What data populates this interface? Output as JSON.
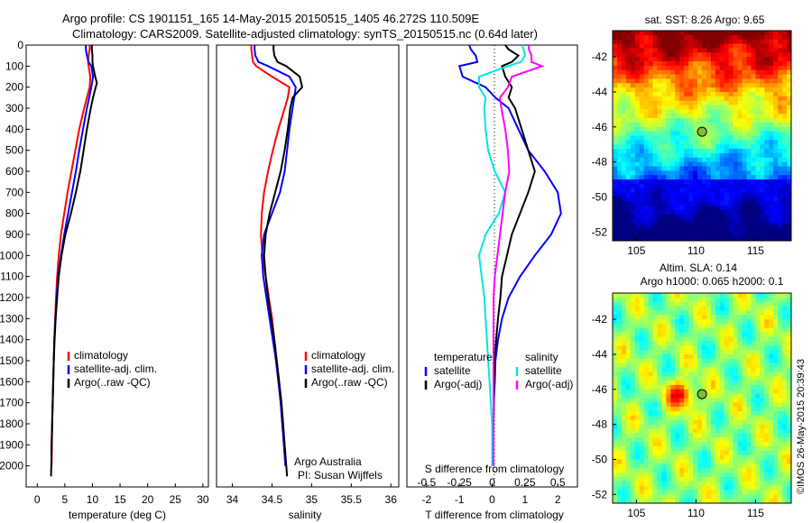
{
  "header": {
    "title_line1": "Argo profile: CS 1901151_165 14-May-2015 20150515_1405 46.272S 110.509E",
    "title_line2": "Climatology: CARS2009. Satellite-adjusted climatology: synTS_20150515.nc (0.64d later)"
  },
  "credit": {
    "line1": "Argo Australia",
    "line2": "PI: Susan Wijffels",
    "imos": "©IMOS 26-May-2015 20:39:43"
  },
  "colors": {
    "climatology": "#ff0000",
    "satellite": "#0000ff",
    "argo": "#000000",
    "salinity_satellite": "#00e5e5",
    "salinity_argo": "#ff00ff"
  },
  "chart_data": [
    {
      "type": "line",
      "xlabel": "temperature (deg C)",
      "ylabel": "",
      "xlim": [
        -2,
        31
      ],
      "ylim": [
        2100,
        0
      ],
      "y_reversed": true,
      "xticks": [
        0,
        5,
        10,
        15,
        20,
        25,
        30
      ],
      "yticks": [
        0,
        100,
        200,
        300,
        400,
        500,
        600,
        700,
        800,
        900,
        1000,
        1100,
        1200,
        1300,
        1400,
        1500,
        1600,
        1700,
        1800,
        1900,
        2000
      ],
      "legend": {
        "placement": "bottom-center",
        "entries": [
          "climatology",
          "satellite-adj. clim.",
          "Argo(..raw -QC)"
        ]
      },
      "series": [
        {
          "name": "climatology",
          "color": "#ff0000",
          "y": [
            0,
            20,
            50,
            80,
            100,
            150,
            200,
            250,
            300,
            400,
            500,
            600,
            700,
            800,
            900,
            1000,
            1100,
            1200,
            1300,
            1400,
            1500,
            1600,
            1700,
            1800,
            1900,
            2000
          ],
          "x": [
            9.5,
            9.5,
            9.3,
            9.2,
            9.3,
            9.6,
            9.5,
            9.0,
            8.5,
            7.6,
            6.9,
            6.2,
            5.5,
            4.9,
            4.3,
            3.9,
            3.6,
            3.4,
            3.25,
            3.1,
            3.0,
            2.9,
            2.8,
            2.7,
            2.65,
            2.6
          ]
        },
        {
          "name": "satellite-adj. clim.",
          "color": "#0000ff",
          "y": [
            0,
            20,
            50,
            80,
            100,
            150,
            200,
            250,
            300,
            400,
            500,
            600,
            700,
            800,
            900,
            1000,
            1100,
            1200,
            1300,
            1400,
            1500,
            1600,
            1700,
            1800,
            1900,
            2000
          ],
          "x": [
            8.8,
            8.8,
            9.0,
            9.3,
            9.8,
            10.1,
            9.8,
            9.4,
            9.0,
            8.3,
            7.6,
            7.0,
            6.3,
            5.6,
            4.9,
            4.3,
            3.8,
            3.5,
            3.3,
            3.1,
            3.0,
            2.9,
            2.8,
            2.7,
            2.6,
            2.55
          ]
        },
        {
          "name": "Argo(..raw -QC)",
          "color": "#000000",
          "y": [
            0,
            20,
            50,
            80,
            100,
            150,
            180,
            200,
            250,
            300,
            400,
            500,
            600,
            700,
            800,
            900,
            1000,
            1100,
            1200,
            1300,
            1400,
            1500,
            1600,
            1700,
            1800,
            1900,
            2000,
            2050
          ],
          "x": [
            9.9,
            9.9,
            10.0,
            10.0,
            10.1,
            10.5,
            10.8,
            10.6,
            10.1,
            9.7,
            9.0,
            8.4,
            7.8,
            7.0,
            6.1,
            5.1,
            4.4,
            3.9,
            3.6,
            3.35,
            3.15,
            3.0,
            2.9,
            2.8,
            2.7,
            2.6,
            2.55,
            2.5
          ]
        }
      ]
    },
    {
      "type": "line",
      "xlabel": "salinity",
      "ylabel": "",
      "xlim": [
        33.8,
        36.1
      ],
      "ylim": [
        2100,
        0
      ],
      "y_reversed": true,
      "xticks": [
        34,
        34.5,
        35,
        35.5,
        36
      ],
      "legend": {
        "placement": "bottom-center",
        "entries": [
          "climatology",
          "satellite-adj. clim.",
          "Argo(..raw -QC)"
        ]
      },
      "series": [
        {
          "name": "climatology",
          "color": "#ff0000",
          "y": [
            0,
            20,
            50,
            80,
            100,
            150,
            200,
            250,
            300,
            400,
            500,
            600,
            700,
            800,
            900,
            1000,
            1100,
            1200,
            1300,
            1400,
            1500,
            1600,
            1700,
            1800,
            1900,
            2000
          ],
          "x": [
            34.24,
            34.24,
            34.25,
            34.26,
            34.3,
            34.5,
            34.72,
            34.7,
            34.66,
            34.58,
            34.51,
            34.45,
            34.4,
            34.37,
            34.36,
            34.38,
            34.42,
            34.46,
            34.5,
            34.53,
            34.56,
            34.59,
            34.61,
            34.63,
            34.65,
            34.67
          ]
        },
        {
          "name": "satellite-adj. clim.",
          "color": "#0000ff",
          "y": [
            0,
            20,
            50,
            80,
            100,
            150,
            200,
            250,
            300,
            400,
            500,
            600,
            700,
            800,
            900,
            1000,
            1100,
            1200,
            1300,
            1400,
            1500,
            1600,
            1700,
            1800,
            1900,
            2000
          ],
          "x": [
            34.28,
            34.28,
            34.29,
            34.33,
            34.45,
            34.72,
            34.8,
            34.78,
            34.76,
            34.72,
            34.69,
            34.66,
            34.6,
            34.5,
            34.4,
            34.37,
            34.39,
            34.43,
            34.47,
            34.51,
            34.55,
            34.58,
            34.61,
            34.63,
            34.65,
            34.67
          ]
        },
        {
          "name": "Argo(..raw -QC)",
          "color": "#000000",
          "y": [
            0,
            20,
            50,
            80,
            100,
            150,
            200,
            250,
            300,
            400,
            500,
            600,
            700,
            800,
            900,
            1000,
            1100,
            1200,
            1300,
            1400,
            1500,
            1600,
            1700,
            1800,
            1900,
            2000,
            2050
          ],
          "x": [
            34.52,
            34.52,
            34.53,
            34.57,
            34.68,
            34.85,
            34.88,
            34.76,
            34.73,
            34.7,
            34.66,
            34.61,
            34.54,
            34.47,
            34.42,
            34.4,
            34.42,
            34.45,
            34.49,
            34.53,
            34.56,
            34.59,
            34.62,
            34.64,
            34.66,
            34.68,
            34.69
          ]
        }
      ]
    },
    {
      "type": "line",
      "xlabel": "T difference from climatology",
      "xlabel_secondary": "S difference from climatology",
      "xlim": [
        -2.6,
        2.6
      ],
      "ylim": [
        2100,
        0
      ],
      "y_reversed": true,
      "xticks": [
        -2,
        -1,
        0,
        1,
        2
      ],
      "secondary_xticks": [
        "-0.5",
        "-0.25",
        "0",
        "0.25",
        "0.5"
      ],
      "legend": {
        "placement": "bottom-center",
        "titles": [
          "temperature",
          "salinity"
        ],
        "entries": [
          "satellite",
          "Argo(-adj)",
          "satellite",
          "Argo(-adj)"
        ]
      },
      "series": [
        {
          "name": "temperature satellite",
          "color": "#0000ff",
          "y": [
            0,
            20,
            50,
            80,
            100,
            150,
            200,
            250,
            300,
            400,
            500,
            600,
            700,
            800,
            900,
            1000,
            1100,
            1200,
            1300,
            1400,
            1500,
            1600,
            1700,
            1800,
            1900,
            2000
          ],
          "x": [
            -0.7,
            -0.65,
            -0.5,
            -0.45,
            -1.0,
            -0.9,
            -0.2,
            0.1,
            0.5,
            0.8,
            1.1,
            1.6,
            2.0,
            2.1,
            1.8,
            1.3,
            0.85,
            0.5,
            0.3,
            0.18,
            0.1,
            0.08,
            0.05,
            0.04,
            0.03,
            0.03
          ]
        },
        {
          "name": "temperature Argo(-adj)",
          "color": "#000000",
          "y": [
            0,
            20,
            50,
            80,
            100,
            150,
            200,
            250,
            300,
            400,
            500,
            600,
            700,
            800,
            900,
            1000,
            1100,
            1200,
            1300,
            1400,
            1500,
            1600,
            1700,
            1800,
            1900,
            2000
          ],
          "x": [
            0.4,
            0.5,
            0.8,
            0.6,
            0.3,
            0.4,
            0.6,
            0.5,
            0.7,
            0.9,
            1.1,
            1.3,
            1.1,
            0.85,
            0.6,
            0.45,
            0.3,
            0.25,
            0.18,
            0.12,
            0.08,
            0.06,
            0.05,
            0.04,
            0.03,
            0.03
          ]
        },
        {
          "name": "salinity satellite",
          "color": "#00e5e5",
          "y": [
            0,
            20,
            50,
            80,
            100,
            150,
            200,
            250,
            300,
            400,
            500,
            600,
            700,
            800,
            900,
            1000,
            1100,
            1200,
            1300,
            1400,
            1500,
            1600,
            1700,
            1800,
            1900,
            2000
          ],
          "x": [
            0.23,
            0.24,
            0.25,
            0.22,
            0.12,
            -0.1,
            -0.1,
            -0.05,
            -0.06,
            -0.05,
            -0.03,
            0.02,
            0.1,
            0.05,
            -0.05,
            -0.1,
            -0.08,
            -0.06,
            -0.05,
            -0.04,
            -0.03,
            -0.02,
            -0.01,
            0,
            0,
            0
          ]
        },
        {
          "name": "salinity Argo(-adj)",
          "color": "#ff00ff",
          "y": [
            0,
            20,
            50,
            80,
            100,
            150,
            200,
            250,
            300,
            400,
            500,
            600,
            700,
            800,
            900,
            1000,
            1100,
            1200,
            1300,
            1400,
            1500,
            1600,
            1700,
            1800,
            1900,
            2000
          ],
          "x": [
            0.28,
            0.28,
            0.3,
            0.3,
            0.38,
            0.15,
            0.12,
            0.06,
            0.07,
            0.1,
            0.12,
            0.13,
            0.1,
            0.08,
            0.06,
            0.04,
            0.02,
            0.01,
            0.01,
            0.01,
            0.01,
            0.01,
            0.01,
            0.01,
            0.01,
            0.01
          ]
        }
      ]
    },
    {
      "type": "heatmap",
      "title": "sat. SST: 8.26 Argo: 9.65",
      "xticks": [
        105,
        110,
        115
      ],
      "yticks": [
        -42,
        -44,
        -46,
        -48,
        -50,
        -52
      ],
      "xlim": [
        103,
        118
      ],
      "ylim": [
        -52.5,
        -40.5
      ],
      "marker": {
        "lon": 110.509,
        "lat": -46.272
      }
    },
    {
      "type": "heatmap",
      "title_line1": "Altim. SLA: 0.14",
      "title_line2": "Argo h1000: 0.065 h2000: 0.1",
      "xticks": [
        105,
        110,
        115
      ],
      "yticks": [
        -42,
        -44,
        -46,
        -48,
        -50,
        -52
      ],
      "xlim": [
        103,
        118
      ],
      "ylim": [
        -52.5,
        -40.5
      ],
      "marker": {
        "lon": 110.509,
        "lat": -46.272
      }
    }
  ]
}
